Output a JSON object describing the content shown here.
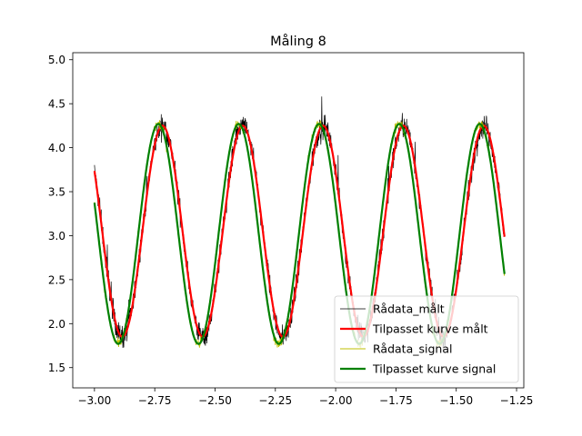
{
  "chart_data": {
    "type": "line",
    "title": "Måling 8",
    "xlabel": "",
    "ylabel": "",
    "xlim": [
      -3.09,
      -1.22
    ],
    "ylim": [
      1.27,
      5.08
    ],
    "xticks": [
      -3.0,
      -2.75,
      -2.5,
      -2.25,
      -2.0,
      -1.75,
      -1.5,
      -1.25
    ],
    "xtick_labels": [
      "−3.00",
      "−2.75",
      "−2.50",
      "−2.25",
      "−2.00",
      "−1.75",
      "−1.50",
      "−1.25"
    ],
    "yticks": [
      1.5,
      2.0,
      2.5,
      3.0,
      3.5,
      4.0,
      4.5,
      5.0
    ],
    "ytick_labels": [
      "1.5",
      "2.0",
      "2.5",
      "3.0",
      "3.5",
      "4.0",
      "4.5",
      "5.0"
    ],
    "grid": false,
    "legend_position": "lower-right",
    "series": [
      {
        "name": "Rådata_målt",
        "color": "#000000",
        "style": "noisy",
        "x_range": [
          -3.0,
          -1.3
        ],
        "amplitude": 1.2,
        "offset": 3.05,
        "period": 0.333,
        "peak_x": -2.718,
        "noise": 0.13
      },
      {
        "name": "Tilpasset kurve målt",
        "color": "#ff0000",
        "style": "fit",
        "x_range": [
          -3.0,
          -1.3
        ],
        "amplitude": 1.2,
        "offset": 3.05,
        "period": 0.333,
        "peak_x": -2.718
      },
      {
        "name": "Rådata_signal",
        "color": "#bfbf00",
        "style": "band",
        "x_range": [
          -3.0,
          -1.3
        ],
        "amplitude": 1.25,
        "offset": 3.02,
        "period": 0.333,
        "peak_x": -2.735,
        "noise": 0.05
      },
      {
        "name": "Tilpasset kurve signal",
        "color": "#008000",
        "style": "fit",
        "x_range": [
          -3.0,
          -1.3
        ],
        "amplitude": 1.25,
        "offset": 3.02,
        "period": 0.333,
        "peak_x": -2.735
      }
    ]
  }
}
